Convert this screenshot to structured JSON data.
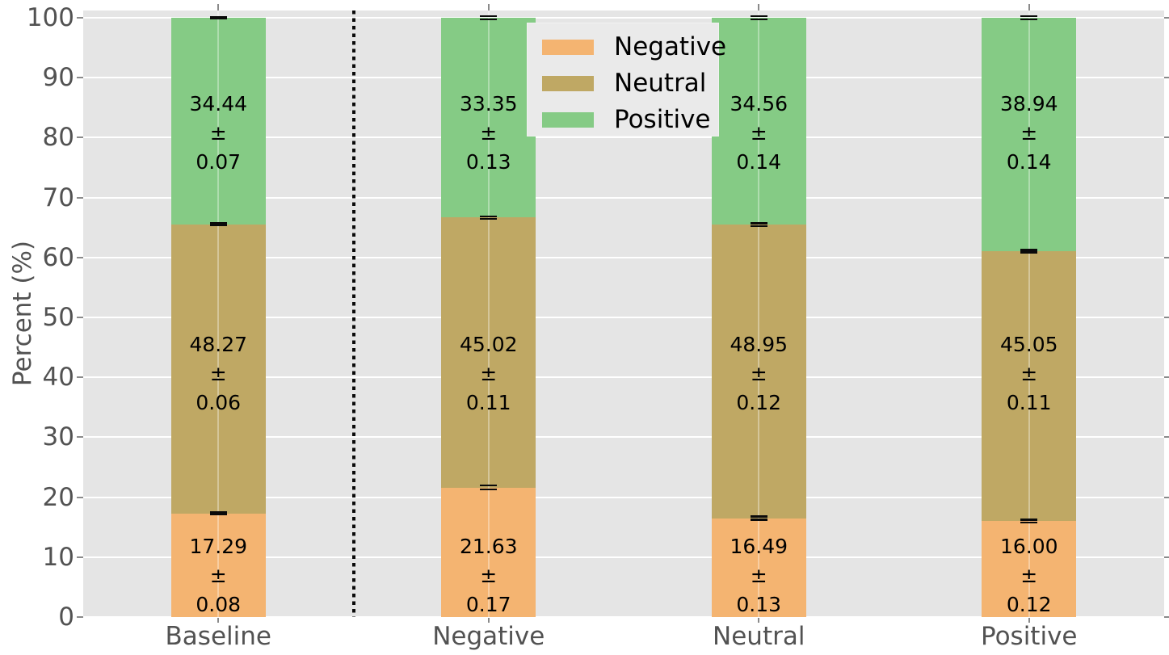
{
  "chart_data": {
    "type": "bar",
    "stacked": true,
    "title": "",
    "xlabel": "",
    "ylabel": "Percent (%)",
    "ylim": [
      0,
      100
    ],
    "yticks": [
      0,
      10,
      20,
      30,
      40,
      50,
      60,
      70,
      80,
      90,
      100
    ],
    "categories": [
      "Baseline",
      "Negative",
      "Neutral",
      "Positive"
    ],
    "series": [
      {
        "name": "Negative",
        "color": "#f4b471",
        "values": [
          17.29,
          21.63,
          16.49,
          16.0
        ],
        "errors": [
          0.08,
          0.17,
          0.13,
          0.12
        ]
      },
      {
        "name": "Neutral",
        "color": "#bfa864",
        "values": [
          48.27,
          45.02,
          48.95,
          45.05
        ],
        "errors": [
          0.06,
          0.11,
          0.12,
          0.11
        ]
      },
      {
        "name": "Positive",
        "color": "#85cb85",
        "values": [
          34.44,
          33.35,
          34.56,
          38.94
        ],
        "errors": [
          0.07,
          0.13,
          0.14,
          0.14
        ]
      }
    ],
    "plus_minus": "±",
    "divider_after_category": "Baseline",
    "legend": {
      "position": "upper center",
      "entries": [
        "Negative",
        "Neutral",
        "Positive"
      ]
    },
    "grid": true,
    "colors": {
      "plot_background": "#e5e5e5",
      "grid": "#ffffff",
      "center_guide": "rgba(255,255,255,0.35)",
      "tick_text": "#525252",
      "bar_label_text": "#000000",
      "error_bar": "#0a0a0a",
      "divider": "#0a0a0a",
      "legend_background": "#eaeaea"
    }
  }
}
